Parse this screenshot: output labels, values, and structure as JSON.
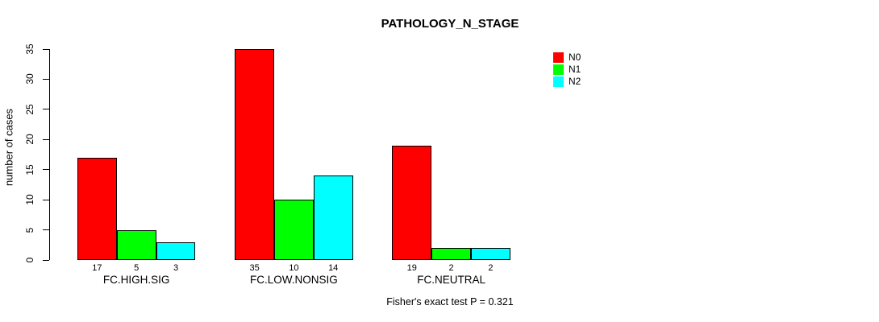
{
  "chart_data": {
    "type": "bar",
    "title": "PATHOLOGY_N_STAGE",
    "xlabel": "",
    "ylabel": "number of cases",
    "ylim": [
      0,
      35
    ],
    "yticks": [
      0,
      5,
      10,
      15,
      20,
      25,
      30,
      35
    ],
    "grid": false,
    "legend_position": "top-right",
    "bar_value_labels": true,
    "categories": [
      "FC.HIGH.SIG",
      "FC.LOW.NONSIG",
      "FC.NEUTRAL"
    ],
    "series": [
      {
        "name": "N0",
        "color": "#ff0000",
        "values": [
          17,
          35,
          19
        ]
      },
      {
        "name": "N1",
        "color": "#00ff00",
        "values": [
          5,
          10,
          2
        ]
      },
      {
        "name": "N2",
        "color": "#00ffff",
        "values": [
          3,
          14,
          2
        ]
      }
    ],
    "annotation": "Fisher's exact test P = 0.321"
  }
}
